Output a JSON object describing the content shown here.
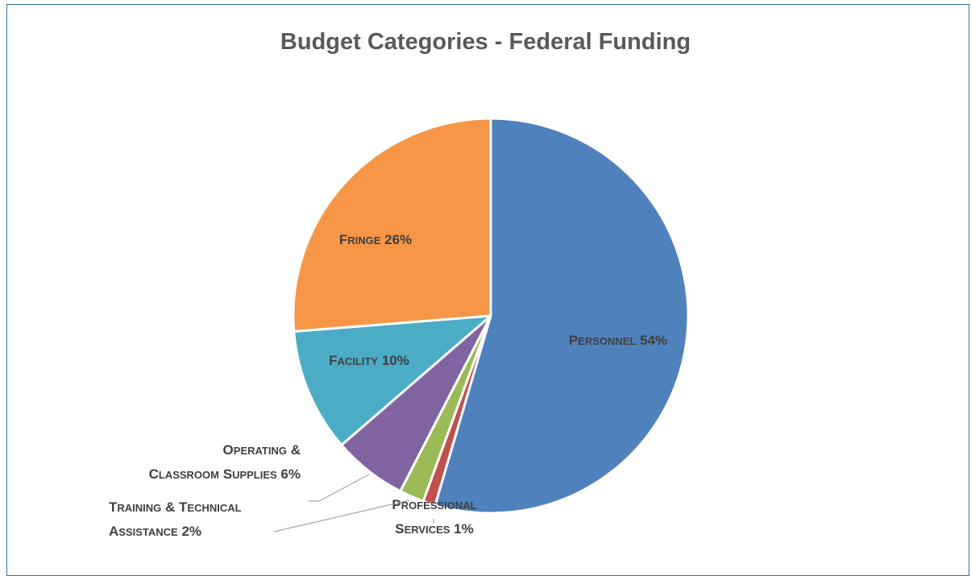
{
  "chart_data": {
    "type": "pie",
    "title": "Budget Categories - Federal Funding",
    "slices": [
      {
        "name": "Personnel",
        "value": 54,
        "color": "#4f81bd",
        "label_lines": [
          [
            [
              "P",
              "big"
            ],
            [
              "ERSONNEL",
              "small"
            ],
            [
              " 54%",
              "big"
            ]
          ]
        ]
      },
      {
        "name": "Professional Services",
        "value": 1,
        "color": "#c0504d",
        "label_lines": [
          [
            [
              "P",
              "big"
            ],
            [
              "ROFESSIONAL",
              "small"
            ]
          ],
          [
            [
              "S",
              "big"
            ],
            [
              "ERVICES",
              "small"
            ],
            [
              " 1%",
              "big"
            ]
          ]
        ]
      },
      {
        "name": "Training & Technical Assistance",
        "value": 2,
        "color": "#9bbb59",
        "label_lines": [
          [
            [
              "T",
              "big"
            ],
            [
              "RAINING",
              "small"
            ],
            [
              " & ",
              "big"
            ],
            [
              "T",
              "big"
            ],
            [
              "ECHNICAL",
              "small"
            ]
          ],
          [
            [
              "A",
              "big"
            ],
            [
              "SSISTANCE",
              "small"
            ],
            [
              " 2%",
              "big"
            ]
          ]
        ]
      },
      {
        "name": "Operating & Classroom Supplies",
        "value": 6,
        "color": "#8064a2",
        "label_lines": [
          [
            [
              "O",
              "big"
            ],
            [
              "PERATING",
              "small"
            ],
            [
              " &",
              "big"
            ]
          ],
          [
            [
              "C",
              "big"
            ],
            [
              "LASSROOM",
              "small"
            ],
            [
              " ",
              "big"
            ],
            [
              "S",
              "big"
            ],
            [
              "UPPLIES",
              "small"
            ],
            [
              " 6%",
              "big"
            ]
          ]
        ]
      },
      {
        "name": "Facility",
        "value": 10,
        "color": "#4bacc6",
        "label_lines": [
          [
            [
              "F",
              "big"
            ],
            [
              "ACILITY",
              "small"
            ],
            [
              " 10%",
              "big"
            ]
          ]
        ]
      },
      {
        "name": "Fringe",
        "value": 26,
        "color": "#f79646",
        "label_lines": [
          [
            [
              "F",
              "big"
            ],
            [
              "RINGE",
              "small"
            ],
            [
              " 26%",
              "big"
            ]
          ]
        ]
      }
    ],
    "legend": "none",
    "data_labels": "category name and percentage"
  }
}
